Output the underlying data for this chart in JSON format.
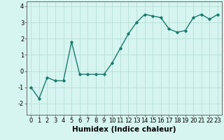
{
  "x": [
    0,
    1,
    2,
    3,
    4,
    5,
    6,
    7,
    8,
    9,
    10,
    11,
    12,
    13,
    14,
    15,
    16,
    17,
    18,
    19,
    20,
    21,
    22,
    23
  ],
  "y": [
    -1.0,
    -1.7,
    -0.4,
    -0.6,
    -0.6,
    1.8,
    -0.2,
    -0.2,
    -0.2,
    -0.2,
    0.5,
    1.4,
    2.3,
    3.0,
    3.5,
    3.4,
    3.3,
    2.6,
    2.4,
    2.5,
    3.3,
    3.5,
    3.2,
    3.5
  ],
  "xlabel": "Humidex (Indice chaleur)",
  "ylim": [
    -2.7,
    4.3
  ],
  "xlim": [
    -0.5,
    23.5
  ],
  "yticks": [
    -2,
    -1,
    0,
    1,
    2,
    3,
    4
  ],
  "xticks": [
    0,
    1,
    2,
    3,
    4,
    5,
    6,
    7,
    8,
    9,
    10,
    11,
    12,
    13,
    14,
    15,
    16,
    17,
    18,
    19,
    20,
    21,
    22,
    23
  ],
  "line_color": "#1a7a6e",
  "marker": "D",
  "marker_size": 1.8,
  "bg_color": "#d6f5f0",
  "grid_color": "#b8ddd8",
  "line_width": 1.0,
  "xlabel_fontsize": 7.5,
  "tick_fontsize": 6.0
}
